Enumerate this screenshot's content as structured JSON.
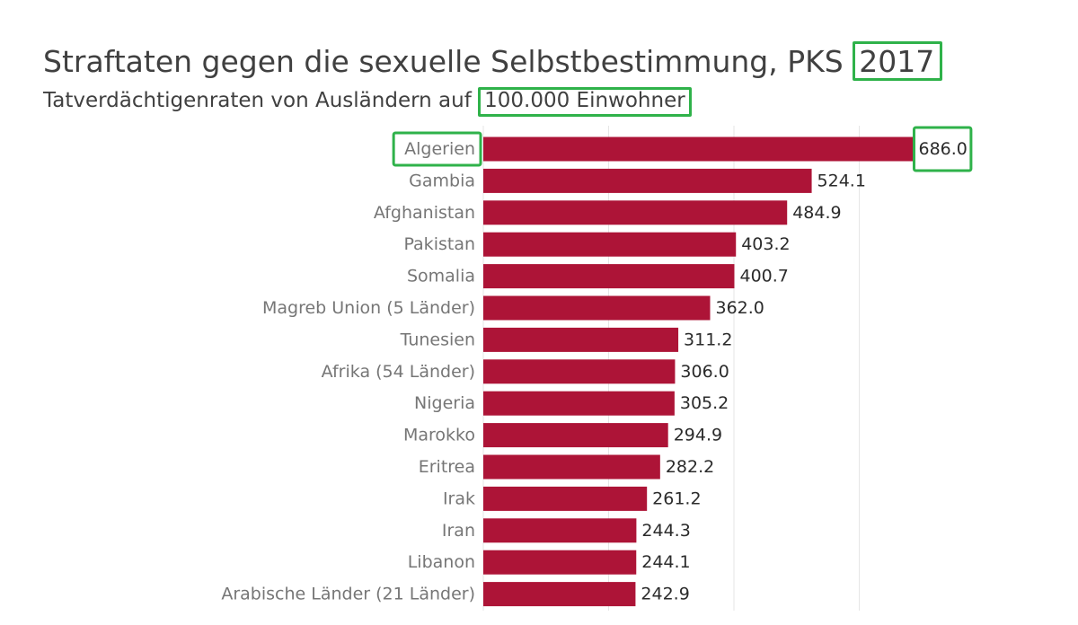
{
  "title_text": "Straftaten gegen die sexuelle Selbstbestimmung, PKS",
  "title_highlight": "2017",
  "subtitle_text": "Tatverdächtigenraten von Ausländern auf",
  "subtitle_highlight": "100.000 Einwohner",
  "colors": {
    "bar": "#ad1437",
    "highlight_box": "#2fb24a",
    "grid": "#e6e6e6"
  },
  "chart_data": {
    "type": "bar",
    "orientation": "horizontal",
    "title": "Straftaten gegen die sexuelle Selbstbestimmung, PKS 2017",
    "subtitle": "Tatverdächtigenraten von Ausländern auf 100.000 Einwohner",
    "categories": [
      "Algerien",
      "Gambia",
      "Afghanistan",
      "Pakistan",
      "Somalia",
      "Magreb Union (5 Länder)",
      "Tunesien",
      "Afrika (54 Länder)",
      "Nigeria",
      "Marokko",
      "Eritrea",
      "Irak",
      "Iran",
      "Libanon",
      "Arabische Länder (21 Länder)"
    ],
    "values": [
      686.0,
      524.1,
      484.9,
      403.2,
      400.7,
      362.0,
      311.2,
      306.0,
      305.2,
      294.9,
      282.2,
      261.2,
      244.3,
      244.1,
      242.9
    ],
    "value_labels": [
      "686.0",
      "524.1",
      "484.9",
      "403.2",
      "400.7",
      "362.0",
      "311.2",
      "306.0",
      "305.2",
      "294.9",
      "282.2",
      "261.2",
      "244.3",
      "244.1",
      "242.9"
    ],
    "xlim": [
      0,
      700
    ],
    "grid": true,
    "legend": "none",
    "highlighted": {
      "category": "Algerien",
      "value_label": "686.0"
    }
  }
}
